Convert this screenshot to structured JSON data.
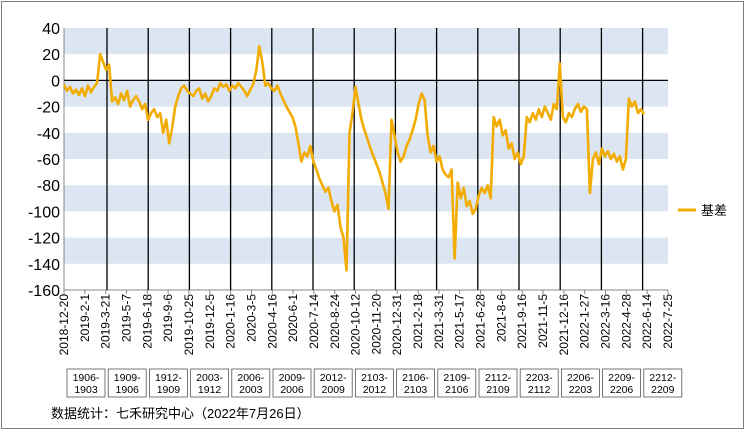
{
  "chart_data": {
    "type": "line",
    "title": "",
    "xlabel": "",
    "ylabel": "",
    "ylim": [
      -160,
      40
    ],
    "yticks": [
      40,
      20,
      0,
      -20,
      -40,
      -60,
      -80,
      -100,
      -120,
      -140,
      -160
    ],
    "x_ticks": [
      "2018-12-20",
      "2019-2-1",
      "2019-3-21",
      "2019-5-7",
      "2019-6-18",
      "2019-9-6",
      "2019-10-25",
      "2019-12-5",
      "2020-1-16",
      "2020-3-5",
      "2020-4-16",
      "2020-6-1",
      "2020-7-14",
      "2020-8-24",
      "2020-10-12",
      "2020-11-20",
      "2020-12-31",
      "2021-2-18",
      "2021-3-31",
      "2021-5-17",
      "2021-6-28",
      "2021-8-6",
      "2021-9-16",
      "2021-11-5",
      "2021-12-16",
      "2022-1-27",
      "2022-3-16",
      "2022-4-28",
      "2022-6-14",
      "2022-7-25"
    ],
    "contract_labels": [
      "1906-1903",
      "1909-1906",
      "1912-1909",
      "2003-1912",
      "2006-2003",
      "2009-2006",
      "2012-2009",
      "2103-2012",
      "2106-2103",
      "2109-2106",
      "2112-2109",
      "2203-2112",
      "2206-2203",
      "2209-2206",
      "2212-2209"
    ],
    "legend": "top-right",
    "grid": "horizontal bands",
    "series": [
      {
        "name": "基差",
        "color": "#f2ac00",
        "points": [
          [
            0,
            -3
          ],
          [
            1,
            -8
          ],
          [
            2,
            -5
          ],
          [
            3,
            -10
          ],
          [
            4,
            -7
          ],
          [
            5,
            -11
          ],
          [
            6,
            -6
          ],
          [
            7,
            -12
          ],
          [
            8,
            -4
          ],
          [
            9,
            -9
          ],
          [
            10,
            -5
          ],
          [
            11,
            -2
          ],
          [
            12,
            20
          ],
          [
            13,
            14
          ],
          [
            14,
            8
          ],
          [
            15,
            12
          ],
          [
            16,
            -16
          ],
          [
            17,
            -13
          ],
          [
            18,
            -18
          ],
          [
            19,
            -10
          ],
          [
            20,
            -15
          ],
          [
            21,
            -8
          ],
          [
            22,
            -20
          ],
          [
            23,
            -15
          ],
          [
            24,
            -12
          ],
          [
            25,
            -16
          ],
          [
            26,
            -22
          ],
          [
            27,
            -18
          ],
          [
            28,
            -30
          ],
          [
            29,
            -25
          ],
          [
            30,
            -22
          ],
          [
            31,
            -28
          ],
          [
            32,
            -25
          ],
          [
            33,
            -40
          ],
          [
            34,
            -30
          ],
          [
            35,
            -48
          ],
          [
            36,
            -36
          ],
          [
            37,
            -20
          ],
          [
            38,
            -12
          ],
          [
            39,
            -6
          ],
          [
            40,
            -4
          ],
          [
            41,
            -8
          ],
          [
            42,
            -10
          ],
          [
            43,
            -12
          ],
          [
            44,
            -8
          ],
          [
            45,
            -6
          ],
          [
            46,
            -14
          ],
          [
            47,
            -10
          ],
          [
            48,
            -16
          ],
          [
            49,
            -12
          ],
          [
            50,
            -6
          ],
          [
            51,
            -8
          ],
          [
            52,
            -2
          ],
          [
            53,
            -5
          ],
          [
            54,
            -3
          ],
          [
            55,
            -8
          ],
          [
            56,
            -4
          ],
          [
            57,
            -6
          ],
          [
            58,
            -2
          ],
          [
            59,
            -5
          ],
          [
            60,
            -8
          ],
          [
            61,
            -12
          ],
          [
            62,
            -7
          ],
          [
            63,
            -3
          ],
          [
            64,
            8
          ],
          [
            65,
            26
          ],
          [
            66,
            14
          ],
          [
            67,
            -4
          ],
          [
            68,
            -2
          ],
          [
            69,
            -6
          ],
          [
            70,
            -8
          ],
          [
            71,
            -4
          ],
          [
            72,
            -10
          ],
          [
            73,
            -15
          ],
          [
            74,
            -20
          ],
          [
            75,
            -24
          ],
          [
            76,
            -28
          ],
          [
            77,
            -35
          ],
          [
            78,
            -48
          ],
          [
            79,
            -62
          ],
          [
            80,
            -55
          ],
          [
            81,
            -58
          ],
          [
            82,
            -50
          ],
          [
            83,
            -62
          ],
          [
            84,
            -68
          ],
          [
            85,
            -75
          ],
          [
            86,
            -80
          ],
          [
            87,
            -85
          ],
          [
            88,
            -82
          ],
          [
            89,
            -92
          ],
          [
            90,
            -100
          ],
          [
            91,
            -95
          ],
          [
            92,
            -112
          ],
          [
            93,
            -120
          ],
          [
            94,
            -145
          ],
          [
            95,
            -40
          ],
          [
            96,
            -25
          ],
          [
            97,
            -5
          ],
          [
            98,
            -18
          ],
          [
            99,
            -30
          ],
          [
            100,
            -38
          ],
          [
            101,
            -45
          ],
          [
            102,
            -52
          ],
          [
            103,
            -58
          ],
          [
            104,
            -64
          ],
          [
            105,
            -70
          ],
          [
            106,
            -78
          ],
          [
            107,
            -86
          ],
          [
            108,
            -98
          ],
          [
            109,
            -30
          ],
          [
            110,
            -42
          ],
          [
            111,
            -55
          ],
          [
            112,
            -62
          ],
          [
            113,
            -58
          ],
          [
            114,
            -50
          ],
          [
            115,
            -45
          ],
          [
            116,
            -38
          ],
          [
            117,
            -30
          ],
          [
            118,
            -18
          ],
          [
            119,
            -10
          ],
          [
            120,
            -15
          ],
          [
            121,
            -42
          ],
          [
            122,
            -55
          ],
          [
            123,
            -50
          ],
          [
            124,
            -62
          ],
          [
            125,
            -58
          ],
          [
            126,
            -68
          ],
          [
            127,
            -72
          ],
          [
            128,
            -74
          ],
          [
            129,
            -68
          ],
          [
            130,
            -136
          ],
          [
            131,
            -78
          ],
          [
            132,
            -90
          ],
          [
            133,
            -82
          ],
          [
            134,
            -96
          ],
          [
            135,
            -92
          ],
          [
            136,
            -102
          ],
          [
            137,
            -98
          ],
          [
            138,
            -88
          ],
          [
            139,
            -82
          ],
          [
            140,
            -86
          ],
          [
            141,
            -80
          ],
          [
            142,
            -90
          ],
          [
            143,
            -28
          ],
          [
            144,
            -35
          ],
          [
            145,
            -30
          ],
          [
            146,
            -42
          ],
          [
            147,
            -38
          ],
          [
            148,
            -52
          ],
          [
            149,
            -48
          ],
          [
            150,
            -60
          ],
          [
            151,
            -55
          ],
          [
            152,
            -64
          ],
          [
            153,
            -58
          ],
          [
            154,
            -28
          ],
          [
            155,
            -32
          ],
          [
            156,
            -25
          ],
          [
            157,
            -30
          ],
          [
            158,
            -22
          ],
          [
            159,
            -28
          ],
          [
            160,
            -20
          ],
          [
            161,
            -25
          ],
          [
            162,
            -30
          ],
          [
            163,
            -18
          ],
          [
            164,
            -22
          ],
          [
            165,
            13
          ],
          [
            166,
            -28
          ],
          [
            167,
            -32
          ],
          [
            168,
            -25
          ],
          [
            169,
            -28
          ],
          [
            170,
            -22
          ],
          [
            171,
            -18
          ],
          [
            172,
            -24
          ],
          [
            173,
            -20
          ],
          [
            174,
            -22
          ],
          [
            175,
            -86
          ],
          [
            176,
            -60
          ],
          [
            177,
            -55
          ],
          [
            178,
            -64
          ],
          [
            179,
            -52
          ],
          [
            180,
            -58
          ],
          [
            181,
            -54
          ],
          [
            182,
            -60
          ],
          [
            183,
            -56
          ],
          [
            184,
            -62
          ],
          [
            185,
            -58
          ],
          [
            186,
            -68
          ],
          [
            187,
            -60
          ],
          [
            188,
            -14
          ],
          [
            189,
            -20
          ],
          [
            190,
            -16
          ],
          [
            191,
            -25
          ],
          [
            192,
            -22
          ],
          [
            193,
            -26
          ]
        ]
      }
    ],
    "source": "数据统计：七禾研究中心（2022年7月26日）"
  }
}
